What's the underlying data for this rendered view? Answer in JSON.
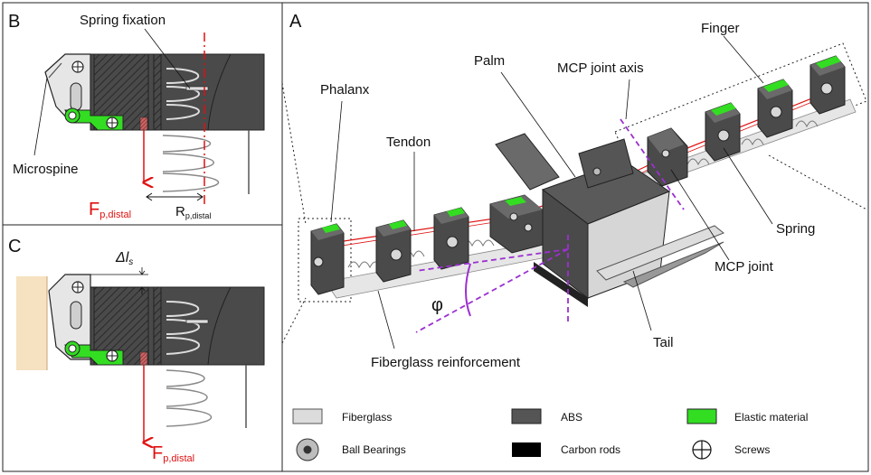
{
  "panels": {
    "a": "A",
    "b": "B",
    "c": "C"
  },
  "labels_a": {
    "finger": "Finger",
    "mcp_joint_axis": "MCP joint axis",
    "palm": "Palm",
    "phalanx": "Phalanx",
    "tendon": "Tendon",
    "spring": "Spring",
    "mcp_joint": "MCP joint",
    "phi": "φ",
    "tail": "Tail",
    "fiberglass_reinforcement": "Fiberglass reinforcement"
  },
  "labels_b": {
    "spring_fixation": "Spring fixation",
    "microspine": "Microspine",
    "force_main": "F",
    "force_sub": "p,distal",
    "radius_main": "R",
    "radius_sub": "p,distal"
  },
  "labels_c": {
    "delta": "Δl",
    "delta_sub": "s",
    "force_main": "F",
    "force_sub": "p,distal"
  },
  "legend": [
    {
      "label": "Fiberglass",
      "swatch": "fiberglass",
      "color": "#dcdcdc"
    },
    {
      "label": "ABS",
      "swatch": "abs",
      "color": "#555555"
    },
    {
      "label": "Elastic material",
      "swatch": "elastic",
      "color": "#33dd22"
    },
    {
      "label": "Ball Bearings",
      "swatch": "bearing",
      "color": "#888888"
    },
    {
      "label": "Carbon rods",
      "swatch": "carbon",
      "color": "#000000"
    },
    {
      "label": "Screws",
      "swatch": "screw",
      "color": "#000000"
    }
  ],
  "colors": {
    "force": "#e01010",
    "axis": "#9b30d0",
    "elastic": "#33dd22",
    "abs": "#4a4a4a"
  }
}
